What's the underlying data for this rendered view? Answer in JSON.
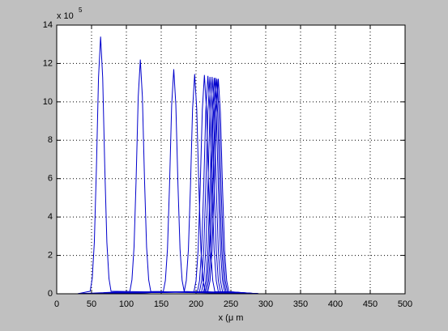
{
  "chart_data": {
    "type": "line",
    "xlabel": "x (μ m",
    "y_multiplier": "x 10",
    "y_exponent": "5",
    "xlim": [
      0,
      500
    ],
    "xticks": [
      0,
      50,
      100,
      150,
      200,
      250,
      300,
      350,
      400,
      450,
      500
    ],
    "ylim": [
      0,
      14
    ],
    "yticks": [
      0,
      2,
      4,
      6,
      8,
      10,
      12,
      14
    ],
    "grid": true,
    "series": [
      {
        "color": "#0000cc",
        "x": [
          30,
          48,
          51,
          54,
          57,
          60,
          63,
          66,
          69,
          72,
          75,
          78,
          290
        ],
        "values": [
          0,
          0.13,
          0.8,
          2.68,
          6.57,
          11.26,
          13.4,
          11.26,
          6.57,
          2.68,
          0.8,
          0.13,
          0
        ]
      },
      {
        "color": "#0000cc",
        "x": [
          30,
          105,
          108,
          111,
          114,
          117,
          120,
          123,
          126,
          129,
          132,
          135,
          290
        ],
        "values": [
          0,
          0.12,
          0.73,
          2.44,
          5.98,
          10.25,
          12.2,
          10.25,
          5.98,
          2.44,
          0.73,
          0.12,
          0
        ]
      },
      {
        "color": "#0000cc",
        "x": [
          30,
          153,
          156,
          159,
          162,
          165,
          168,
          171,
          174,
          177,
          180,
          183,
          290
        ],
        "values": [
          0,
          0.12,
          0.7,
          2.34,
          5.73,
          9.83,
          11.7,
          9.83,
          5.73,
          2.34,
          0.7,
          0.12,
          0
        ]
      },
      {
        "color": "#0000cc",
        "x": [
          30,
          183,
          186,
          189,
          192,
          195,
          198,
          201,
          204,
          207,
          210,
          213,
          290
        ],
        "values": [
          0,
          0.11,
          0.69,
          2.29,
          5.61,
          9.62,
          11.45,
          9.62,
          5.61,
          2.29,
          0.69,
          0.11,
          0
        ]
      },
      {
        "color": "#0000cc",
        "x": [
          30,
          197,
          200,
          203,
          206,
          209,
          212,
          215,
          218,
          221,
          224,
          227,
          290
        ],
        "values": [
          0,
          0.11,
          0.68,
          2.28,
          5.59,
          9.58,
          11.4,
          9.58,
          5.59,
          2.28,
          0.68,
          0.11,
          0
        ]
      },
      {
        "color": "#0000cc",
        "x": [
          30,
          202,
          205,
          208,
          211,
          214,
          217,
          220,
          223,
          226,
          229,
          232,
          290
        ],
        "values": [
          0,
          0.11,
          0.68,
          2.27,
          5.56,
          9.53,
          11.35,
          9.53,
          5.56,
          2.27,
          0.68,
          0.11,
          0
        ]
      },
      {
        "color": "#0000cc",
        "x": [
          30,
          205,
          208,
          211,
          214,
          217,
          220,
          223,
          226,
          229,
          232,
          235,
          290
        ],
        "values": [
          0,
          0.11,
          0.68,
          2.26,
          5.54,
          9.49,
          11.3,
          9.49,
          5.54,
          2.26,
          0.68,
          0.11,
          0
        ]
      },
      {
        "color": "#0000cc",
        "x": [
          30,
          208,
          211,
          214,
          217,
          220,
          223,
          226,
          229,
          232,
          235,
          238,
          290
        ],
        "values": [
          0,
          0.11,
          0.68,
          2.26,
          5.54,
          9.49,
          11.3,
          9.49,
          5.54,
          2.26,
          0.68,
          0.11,
          0
        ]
      },
      {
        "color": "#0000cc",
        "x": [
          30,
          211,
          214,
          217,
          220,
          223,
          226,
          229,
          232,
          235,
          238,
          241,
          290
        ],
        "values": [
          0,
          0.11,
          0.68,
          2.25,
          5.51,
          9.45,
          11.25,
          9.45,
          5.51,
          2.25,
          0.68,
          0.11,
          0
        ]
      },
      {
        "color": "#0000cc",
        "x": [
          30,
          213,
          216,
          219,
          222,
          225,
          228,
          231,
          234,
          237,
          240,
          243,
          290
        ],
        "values": [
          0,
          0.11,
          0.68,
          2.25,
          5.51,
          9.45,
          11.25,
          9.45,
          5.51,
          2.25,
          0.68,
          0.11,
          0
        ]
      },
      {
        "color": "#0000cc",
        "x": [
          30,
          215,
          218,
          221,
          224,
          227,
          230,
          233,
          236,
          239,
          242,
          245,
          290
        ],
        "values": [
          0,
          0.11,
          0.67,
          2.24,
          5.49,
          9.41,
          11.2,
          9.41,
          5.49,
          2.24,
          0.67,
          0.11,
          0
        ]
      },
      {
        "color": "#0000cc",
        "x": [
          30,
          217,
          220,
          223,
          226,
          229,
          232,
          235,
          238,
          241,
          244,
          247,
          290
        ],
        "values": [
          0,
          0.11,
          0.67,
          2.24,
          5.49,
          9.41,
          11.2,
          9.41,
          5.49,
          2.24,
          0.67,
          0.11,
          0
        ]
      }
    ]
  }
}
